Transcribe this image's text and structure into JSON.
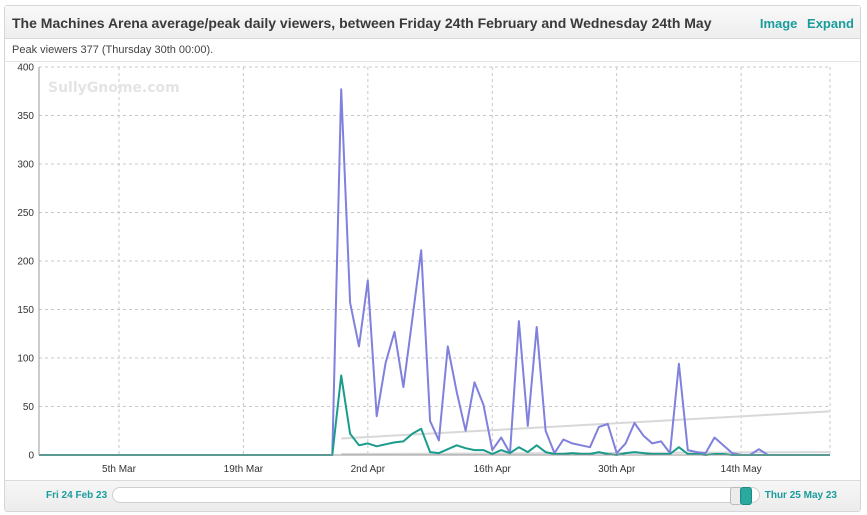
{
  "header": {
    "title": "The Machines Arena average/peak daily viewers, between Friday 24th February and Wednesday 24th May",
    "image_link": "Image",
    "expand_link": "Expand"
  },
  "peak_info": "Peak viewers 377 (Thursday 30th 00:00).",
  "watermark": "SullyGnome.com",
  "footer": {
    "start_date": "Fri 24 Feb 23",
    "end_date": "Thur 25 May 23"
  },
  "colors": {
    "peak": "#8080dd",
    "average": "#1a9c8c",
    "trend": "#d8d8d8",
    "accent": "#1a9c9c"
  },
  "chart_data": {
    "type": "line",
    "title": "",
    "xlabel": "",
    "ylabel": "",
    "ylim": [
      0,
      400
    ],
    "yticks": [
      0,
      50,
      100,
      150,
      200,
      250,
      300,
      350,
      400
    ],
    "x_range": [
      "2023-02-24",
      "2023-05-24"
    ],
    "x_tick_labels": [
      {
        "date": "2023-03-05",
        "label": "5th Mar"
      },
      {
        "date": "2023-03-19",
        "label": "19th Mar"
      },
      {
        "date": "2023-04-02",
        "label": "2nd Apr"
      },
      {
        "date": "2023-04-16",
        "label": "16th Apr"
      },
      {
        "date": "2023-04-30",
        "label": "30th Apr"
      },
      {
        "date": "2023-05-14",
        "label": "14th May"
      }
    ],
    "grid": true,
    "series": [
      {
        "key": "peak",
        "points": [
          [
            "2023-02-24",
            0
          ],
          [
            "2023-03-05",
            0
          ],
          [
            "2023-03-19",
            0
          ],
          [
            "2023-03-28",
            0
          ],
          [
            "2023-03-29",
            0
          ],
          [
            "2023-03-30",
            377
          ],
          [
            "2023-03-31",
            157
          ],
          [
            "2023-04-01",
            112
          ],
          [
            "2023-04-02",
            180
          ],
          [
            "2023-04-03",
            40
          ],
          [
            "2023-04-04",
            95
          ],
          [
            "2023-04-05",
            127
          ],
          [
            "2023-04-06",
            70
          ],
          [
            "2023-04-07",
            140
          ],
          [
            "2023-04-08",
            211
          ],
          [
            "2023-04-09",
            35
          ],
          [
            "2023-04-10",
            15
          ],
          [
            "2023-04-11",
            112
          ],
          [
            "2023-04-12",
            65
          ],
          [
            "2023-04-13",
            25
          ],
          [
            "2023-04-14",
            75
          ],
          [
            "2023-04-15",
            52
          ],
          [
            "2023-04-16",
            5
          ],
          [
            "2023-04-17",
            18
          ],
          [
            "2023-04-18",
            2
          ],
          [
            "2023-04-19",
            138
          ],
          [
            "2023-04-20",
            30
          ],
          [
            "2023-04-21",
            132
          ],
          [
            "2023-04-22",
            25
          ],
          [
            "2023-04-23",
            2
          ],
          [
            "2023-04-24",
            16
          ],
          [
            "2023-04-25",
            12
          ],
          [
            "2023-04-26",
            10
          ],
          [
            "2023-04-27",
            8
          ],
          [
            "2023-04-28",
            29
          ],
          [
            "2023-04-29",
            32
          ],
          [
            "2023-04-30",
            2
          ],
          [
            "2023-05-01",
            12
          ],
          [
            "2023-05-02",
            33
          ],
          [
            "2023-05-03",
            20
          ],
          [
            "2023-05-04",
            12
          ],
          [
            "2023-05-05",
            14
          ],
          [
            "2023-05-06",
            2
          ],
          [
            "2023-05-07",
            94
          ],
          [
            "2023-05-08",
            5
          ],
          [
            "2023-05-09",
            3
          ],
          [
            "2023-05-10",
            2
          ],
          [
            "2023-05-11",
            18
          ],
          [
            "2023-05-12",
            10
          ],
          [
            "2023-05-13",
            2
          ],
          [
            "2023-05-14",
            0
          ],
          [
            "2023-05-15",
            0
          ],
          [
            "2023-05-16",
            6
          ],
          [
            "2023-05-17",
            0
          ],
          [
            "2023-05-24",
            0
          ]
        ]
      },
      {
        "key": "average",
        "points": [
          [
            "2023-02-24",
            0
          ],
          [
            "2023-03-05",
            0
          ],
          [
            "2023-03-19",
            0
          ],
          [
            "2023-03-28",
            0
          ],
          [
            "2023-03-29",
            0
          ],
          [
            "2023-03-30",
            82
          ],
          [
            "2023-03-31",
            22
          ],
          [
            "2023-04-01",
            10
          ],
          [
            "2023-04-02",
            12
          ],
          [
            "2023-04-03",
            9
          ],
          [
            "2023-04-04",
            11
          ],
          [
            "2023-04-05",
            13
          ],
          [
            "2023-04-06",
            14
          ],
          [
            "2023-04-07",
            22
          ],
          [
            "2023-04-08",
            27
          ],
          [
            "2023-04-09",
            3
          ],
          [
            "2023-04-10",
            2
          ],
          [
            "2023-04-11",
            6
          ],
          [
            "2023-04-12",
            10
          ],
          [
            "2023-04-13",
            7
          ],
          [
            "2023-04-14",
            5
          ],
          [
            "2023-04-15",
            5
          ],
          [
            "2023-04-16",
            1
          ],
          [
            "2023-04-17",
            5
          ],
          [
            "2023-04-18",
            2
          ],
          [
            "2023-04-19",
            8
          ],
          [
            "2023-04-20",
            3
          ],
          [
            "2023-04-21",
            10
          ],
          [
            "2023-04-22",
            3
          ],
          [
            "2023-04-23",
            1
          ],
          [
            "2023-04-24",
            1
          ],
          [
            "2023-04-25",
            2
          ],
          [
            "2023-04-26",
            1
          ],
          [
            "2023-04-27",
            1
          ],
          [
            "2023-04-28",
            3
          ],
          [
            "2023-04-29",
            1
          ],
          [
            "2023-04-30",
            0
          ],
          [
            "2023-05-01",
            2
          ],
          [
            "2023-05-02",
            3
          ],
          [
            "2023-05-03",
            2
          ],
          [
            "2023-05-04",
            1
          ],
          [
            "2023-05-05",
            1
          ],
          [
            "2023-05-06",
            1
          ],
          [
            "2023-05-07",
            8
          ],
          [
            "2023-05-08",
            1
          ],
          [
            "2023-05-09",
            1
          ],
          [
            "2023-05-10",
            0
          ],
          [
            "2023-05-11",
            1
          ],
          [
            "2023-05-12",
            1
          ],
          [
            "2023-05-13",
            0
          ],
          [
            "2023-05-14",
            0
          ],
          [
            "2023-05-24",
            0
          ]
        ]
      },
      {
        "key": "trend-peak",
        "points": [
          [
            "2023-03-30",
            17
          ],
          [
            "2023-05-24",
            45
          ]
        ]
      },
      {
        "key": "trend-average",
        "points": [
          [
            "2023-03-30",
            1
          ],
          [
            "2023-05-24",
            3
          ]
        ]
      }
    ]
  }
}
